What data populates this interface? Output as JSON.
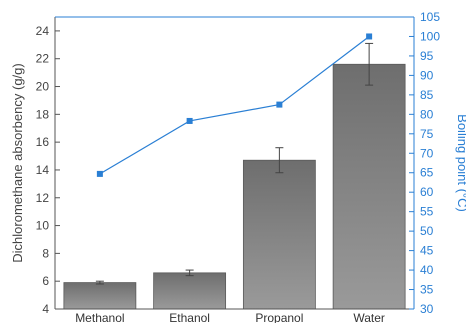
{
  "chart_data": {
    "type": "bar",
    "title": "",
    "xlabel": "",
    "categories": [
      "Methanol",
      "Ethanol",
      "Propanol",
      "Water"
    ],
    "ylabel": "Dichloromethane absorbency (g/g)",
    "ylim": [
      4,
      25
    ],
    "yticks": [
      4,
      6,
      8,
      10,
      12,
      14,
      16,
      18,
      20,
      22,
      24
    ],
    "y2label": "Boiling point (°C)",
    "y2lim": [
      30,
      105
    ],
    "y2ticks": [
      30,
      35,
      40,
      45,
      50,
      55,
      60,
      65,
      70,
      75,
      80,
      85,
      90,
      95,
      100,
      105
    ],
    "series": [
      {
        "type": "bar",
        "axis": "left",
        "values": [
          5.9,
          6.6,
          14.7,
          21.6
        ],
        "errors": [
          0.1,
          0.2,
          0.9,
          1.5
        ],
        "color": "#808080"
      },
      {
        "type": "line",
        "axis": "right",
        "values": [
          64.7,
          78.3,
          82.5,
          100
        ],
        "color": "#2a7fd4"
      }
    ],
    "grid": false,
    "legend": "none"
  }
}
